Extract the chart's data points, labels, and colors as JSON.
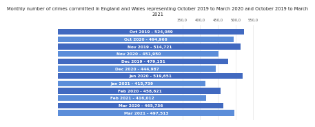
{
  "title": "Monthly number of crimes committed in England and Wales representing October 2019 to March 2020 and October 2019 to March\n2021",
  "bars": [
    {
      "label": "Oct 2019 - 524,089",
      "value": 524089
    },
    {
      "label": "Oct 2020 - 494,966",
      "value": 494966
    },
    {
      "label": "Nov 2019 - 514,721",
      "value": 514721
    },
    {
      "label": "Nov 2020 - 451,950",
      "value": 451950
    },
    {
      "label": "Dec 2019 - 479,151",
      "value": 479151
    },
    {
      "label": "Dec 2020 - 444,987",
      "value": 444987
    },
    {
      "label": "Jan 2020 - 519,651",
      "value": 519651
    },
    {
      "label": "Jan 2021 - 415,739",
      "value": 415739
    },
    {
      "label": "Feb 2020 - 458,621",
      "value": 458621
    },
    {
      "label": "Feb 2021 - 416,012",
      "value": 416012
    },
    {
      "label": "Mar 2020 - 465,736",
      "value": 465736
    },
    {
      "label": "Mar 2021 - 497,513",
      "value": 497513
    }
  ],
  "bar_color_dark": "#4169C0",
  "bar_color_light": "#5B8DD9",
  "background_color": "#ffffff",
  "text_color": "#ffffff",
  "title_color": "#222222",
  "xtick_color": "#555555",
  "xlim_min": 0,
  "xlim_max": 560000,
  "xticks": [
    350000,
    400000,
    450000,
    500000,
    550000
  ],
  "xtick_labels": [
    "350,0",
    "400,0",
    "450,0",
    "500,0",
    "550,0"
  ],
  "title_fontsize": 4.8,
  "bar_label_fontsize": 4.2,
  "tick_fontsize": 3.8
}
